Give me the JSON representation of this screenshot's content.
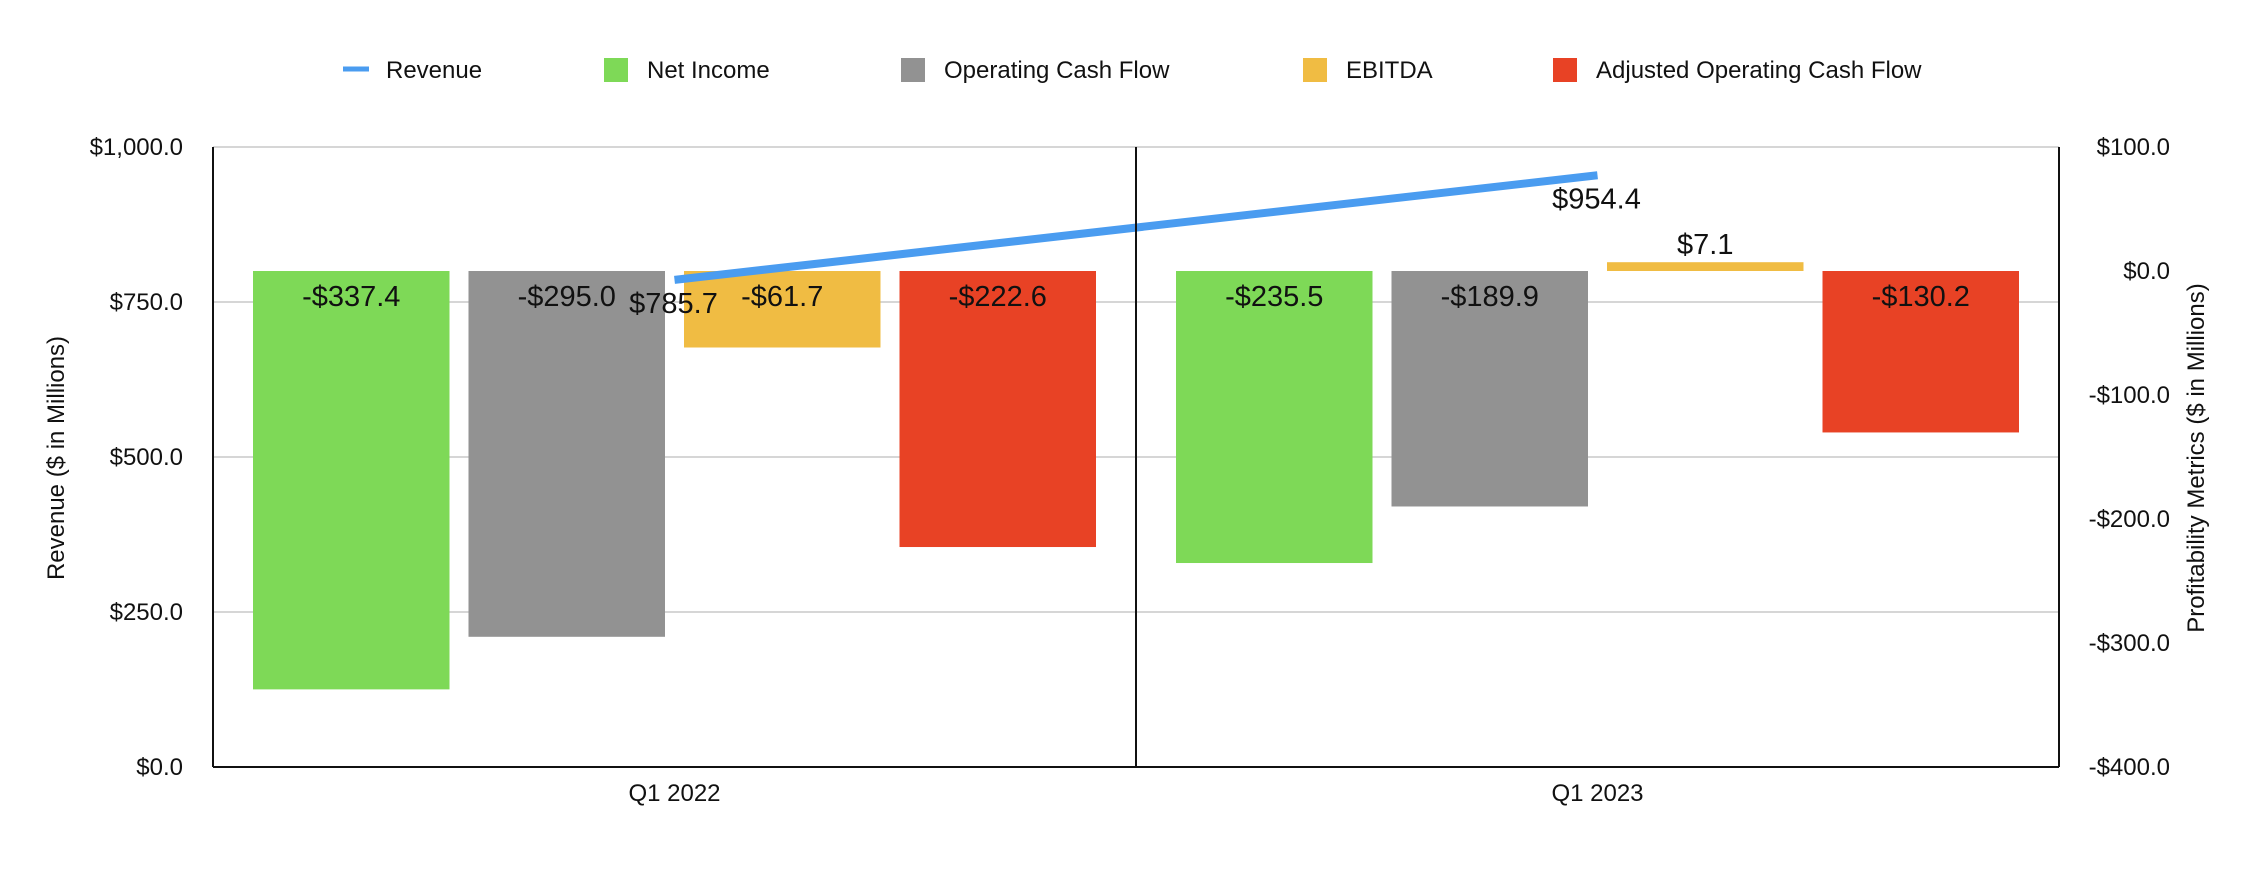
{
  "chart_data": {
    "type": "bar",
    "categories": [
      "Q1 2022",
      "Q1 2023"
    ],
    "y_left": {
      "label": "Revenue ($ in Millions)",
      "ylim": [
        0,
        1000
      ],
      "ticks": [
        0,
        250,
        500,
        750,
        1000
      ],
      "tick_labels": [
        "$0.0",
        "$250.0",
        "$500.0",
        "$750.0",
        "$1,000.0"
      ]
    },
    "y_right": {
      "label": "Profitability Metrics ($ in Millions)",
      "ylim": [
        -400,
        100
      ],
      "ticks": [
        -400,
        -300,
        -200,
        -100,
        0,
        100
      ],
      "tick_labels": [
        "-$400.0",
        "-$300.0",
        "-$200.0",
        "-$100.0",
        "$0.0",
        "$100.0"
      ]
    },
    "grid": true,
    "legend_position": "top",
    "series": [
      {
        "name": "Revenue",
        "kind": "line",
        "axis": "left",
        "color": "#4a9cf0",
        "values": [
          785.7,
          954.4
        ],
        "labels": [
          "$785.7",
          "$954.4"
        ]
      },
      {
        "name": "Net Income",
        "kind": "bar",
        "axis": "right",
        "color": "#7ed957",
        "values": [
          -337.4,
          -235.5
        ],
        "labels": [
          "-$337.4",
          "-$235.5"
        ]
      },
      {
        "name": "Operating Cash Flow",
        "kind": "bar",
        "axis": "right",
        "color": "#929292",
        "values": [
          -295.0,
          -189.9
        ],
        "labels": [
          "-$295.0",
          "-$189.9"
        ]
      },
      {
        "name": "EBITDA",
        "kind": "bar",
        "axis": "right",
        "color": "#f0bc43",
        "values": [
          -61.7,
          7.1
        ],
        "labels": [
          "-$61.7",
          "$7.1"
        ]
      },
      {
        "name": "Adjusted Operating Cash Flow",
        "kind": "bar",
        "axis": "right",
        "color": "#e84225",
        "values": [
          -222.6,
          -130.2
        ],
        "labels": [
          "-$222.6",
          "-$130.2"
        ]
      }
    ]
  }
}
